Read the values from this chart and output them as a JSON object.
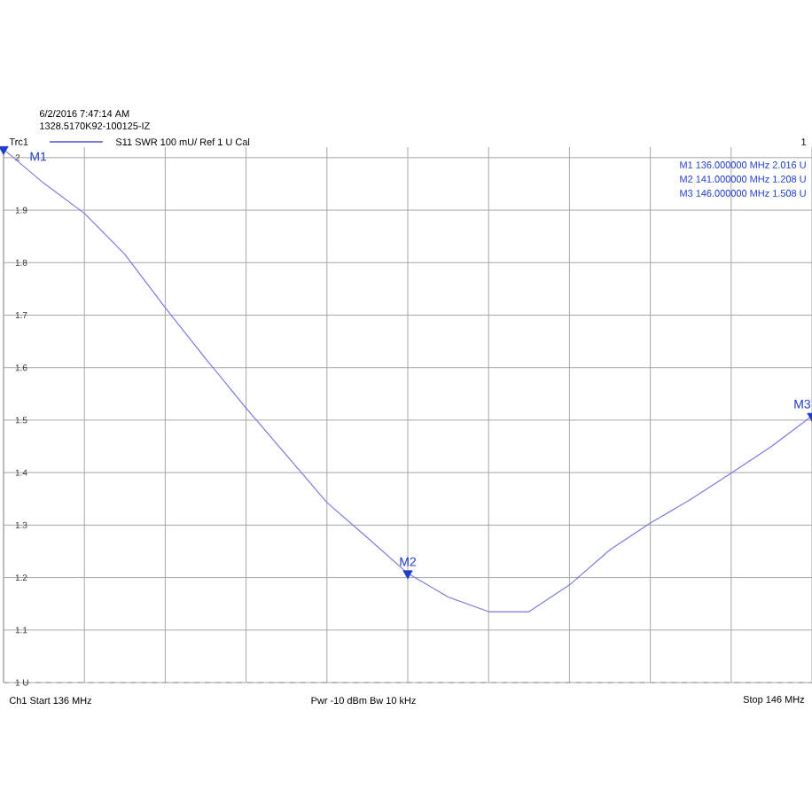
{
  "chart_data": {
    "type": "line",
    "legend_title": "Trc1",
    "legend": "top left",
    "categories": [
      null,
      null,
      null,
      null,
      null,
      null,
      null,
      null,
      null,
      null,
      null,
      null,
      null,
      null,
      null,
      null,
      null,
      null,
      null,
      null,
      null
    ],
    "series": [
      {
        "name": "S11  SWR  100 mU/ Ref 1 U  Cal",
        "color": "#7a7ae0",
        "values": [
          2.016,
          1.951,
          1.894,
          1.816,
          1.714,
          1.617,
          1.523,
          1.433,
          1.343,
          1.276,
          1.208,
          1.163,
          1.135,
          1.135,
          1.186,
          1.253,
          1.304,
          1.349,
          1.399,
          1.45,
          1.508
        ]
      },
      {
        "type": "scatter",
        "marker": "triangle",
        "color": "#1e3cc8",
        "values": [
          2.016,
          null,
          null,
          null,
          null,
          null,
          null,
          null,
          null,
          null,
          1.208,
          null,
          null,
          null,
          null,
          null,
          null,
          null,
          null,
          null,
          1.508
        ],
        "value_labels": [
          "M1",
          null,
          null,
          null,
          null,
          null,
          null,
          null,
          null,
          null,
          "M2",
          null,
          null,
          null,
          null,
          null,
          null,
          null,
          null,
          null,
          "M3"
        ]
      }
    ],
    "ylim": [
      1,
      2.02
    ],
    "yticks": [
      {
        "value": 1,
        "label": "1 U"
      },
      {
        "value": 1.1,
        "label": "1.1"
      },
      {
        "value": 1.2,
        "label": "1.2"
      },
      {
        "value": 1.3,
        "label": "1.3"
      },
      {
        "value": 1.4,
        "label": "1.4"
      },
      {
        "value": 1.5,
        "label": "1.5"
      },
      {
        "value": 1.6,
        "label": "1.6"
      },
      {
        "value": 1.7,
        "label": "1.7"
      },
      {
        "value": 1.8,
        "label": "1.8"
      },
      {
        "value": 1.9,
        "label": "1.9"
      },
      {
        "value": 2,
        "label": "2"
      }
    ],
    "tick_labels": "y",
    "grid": true,
    "line_style": "solid",
    "marker": "none",
    "annotations": [
      "6/2/2016 7:47:14 AM",
      "1328.5170K92-100125-IZ",
      "1",
      "M1  136.000000 MHz  2.016 U",
      "M2  141.000000 MHz  1.208 U",
      "M3  146.000000 MHz  1.508 U",
      "Ch1  Start  136 MHz",
      "Pwr  -10 dBm  Bw  10 kHz",
      "Stop  146 MHz"
    ]
  }
}
